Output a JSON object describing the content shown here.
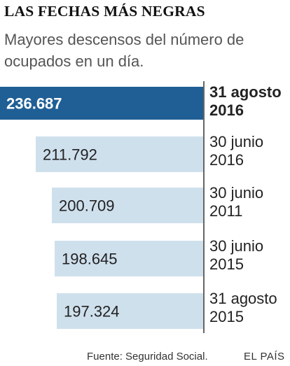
{
  "header": {
    "title": "LAS FECHAS MÁS NEGRAS",
    "subtitle": "Mayores descensos del número de ocupados en un día."
  },
  "footer": {
    "source": "Fuente: Seguridad Social.",
    "brand": "EL PAÍS"
  },
  "colors": {
    "highlight_bar": "#1f5f96",
    "normal_bar": "#cfe0ed",
    "highlight_text": "#ffffff",
    "normal_text": "#222222",
    "separator": "#333333"
  },
  "chart_data": {
    "type": "bar",
    "orientation": "horizontal",
    "title": "LAS FECHAS MÁS NEGRAS",
    "subtitle": "Mayores descensos del número de ocupados en un día.",
    "categories": [
      "31 agosto 2016",
      "30 junio 2016",
      "30 junio 2011",
      "30 junio 2015",
      "31 agosto 2015"
    ],
    "category_lines": [
      [
        "31 agosto",
        "2016"
      ],
      [
        "30 junio",
        "2016"
      ],
      [
        "30 junio",
        "2011"
      ],
      [
        "30 junio",
        "2015"
      ],
      [
        "31 agosto",
        "2015"
      ]
    ],
    "values": [
      236687,
      211792,
      200709,
      198645,
      197324
    ],
    "value_labels": [
      "236.687",
      "211.792",
      "200.709",
      "198.645",
      "197.324"
    ],
    "highlight_index": 0,
    "xlabel": "",
    "ylabel": "",
    "grid": false,
    "legend": "none"
  }
}
